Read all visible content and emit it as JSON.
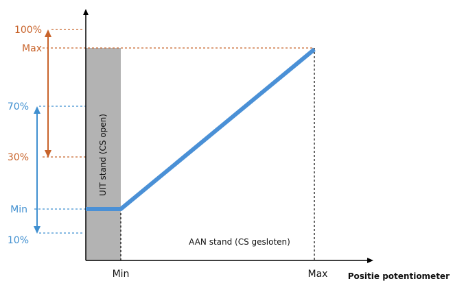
{
  "colors": {
    "orange": "#c8632a",
    "blue": "#3f8fd0",
    "line_blue": "#4a90d6",
    "grey_band": "#b3b3b3",
    "axis": "#000000",
    "text": "#111111"
  },
  "y_labels": {
    "pct100": "100%",
    "max": "Max",
    "pct70": "70%",
    "pct30": "30%",
    "min": "Min",
    "pct10": "10%"
  },
  "x_labels": {
    "min": "Min",
    "max": "Max",
    "axis_title": "Positie potentiometer"
  },
  "band_label": "UIT stand (CS open)",
  "region_label": "AAN stand (CS gesloten)"
}
